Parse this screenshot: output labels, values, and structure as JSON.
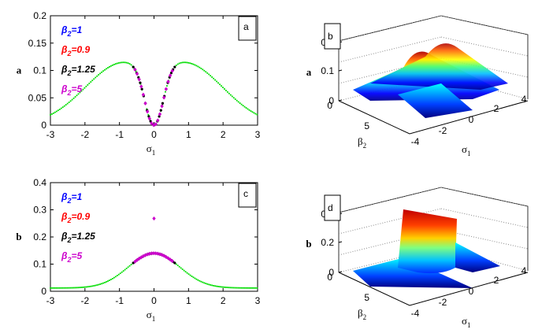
{
  "chart_data": [
    {
      "id": "a",
      "type": "scatter",
      "panel_label": "a",
      "ylabel": "a",
      "xlabel": "σ",
      "xlabel_sub": "1",
      "xlim": [
        -3,
        3
      ],
      "ylim": [
        0,
        0.2
      ],
      "xticks": [
        "-3",
        "-2",
        "-1",
        "0",
        "1",
        "2",
        "3"
      ],
      "yticks": [
        "0",
        "0.05",
        "0.1",
        "0.15",
        "0.2"
      ],
      "legend": [
        {
          "label": "β",
          "sub": "2",
          "suffix": "=1",
          "color": "#0000ff"
        },
        {
          "label": "β",
          "sub": "2",
          "suffix": "=0.9",
          "color": "#ff0000"
        },
        {
          "label": "β",
          "sub": "2",
          "suffix": "=1.25",
          "color": "#000000"
        },
        {
          "label": "β",
          "sub": "2",
          "suffix": "=5",
          "color": "#cc00cc"
        }
      ],
      "series": [
        {
          "color": "#00dd00",
          "curve": "a_outer",
          "range": [
            -3,
            3
          ]
        },
        {
          "color": "#000000",
          "curve": "a_outer",
          "range": [
            -0.6,
            0.6
          ]
        },
        {
          "color": "#cc00cc",
          "curve": "a_outer",
          "range": [
            -0.55,
            0.55
          ]
        }
      ]
    },
    {
      "id": "c",
      "type": "scatter",
      "panel_label": "c",
      "ylabel": "b",
      "xlabel": "σ",
      "xlabel_sub": "1",
      "xlim": [
        -3,
        3
      ],
      "ylim": [
        0,
        0.4
      ],
      "xticks": [
        "-3",
        "-2",
        "-1",
        "0",
        "1",
        "2",
        "3"
      ],
      "yticks": [
        "0",
        "0.1",
        "0.2",
        "0.3",
        "0.4"
      ],
      "legend": [
        {
          "label": "β",
          "sub": "2",
          "suffix": "=1",
          "color": "#0000ff"
        },
        {
          "label": "β",
          "sub": "2",
          "suffix": "=0.9",
          "color": "#ff0000"
        },
        {
          "label": "β",
          "sub": "2",
          "suffix": "=1.25",
          "color": "#000000"
        },
        {
          "label": "β",
          "sub": "2",
          "suffix": "=5",
          "color": "#cc00cc"
        }
      ],
      "series": [
        {
          "color": "#00dd00",
          "curve": "b_bell",
          "range": [
            -3,
            3
          ]
        },
        {
          "color": "#000000",
          "curve": "b_bell",
          "range": [
            -0.6,
            0.6
          ]
        },
        {
          "color": "#cc00cc",
          "curve": "b_bell",
          "range": [
            -0.55,
            0.55
          ]
        }
      ],
      "outlier": {
        "x": 0,
        "y": 0.268,
        "color": "#cc00cc"
      }
    },
    {
      "id": "b",
      "type": "surface3d",
      "panel_label": "b",
      "zlabel": "a",
      "xlabel": "σ",
      "xlabel_sub": "1",
      "ylabel": "β",
      "ylabel_sub": "2",
      "zticks": [
        "0",
        "0.1",
        "0.2"
      ],
      "xticks": [
        "-4",
        "-2",
        "0",
        "2",
        "4"
      ],
      "yticks": [
        "0",
        "5"
      ],
      "colormap": "jet"
    },
    {
      "id": "d",
      "type": "surface3d",
      "panel_label": "d",
      "zlabel": "b",
      "xlabel": "σ",
      "xlabel_sub": "1",
      "ylabel": "β",
      "ylabel_sub": "2",
      "zticks": [
        "0",
        "0.2",
        "0.4"
      ],
      "xticks": [
        "-4",
        "-2",
        "0",
        "2",
        "4"
      ],
      "yticks": [
        "0",
        "5"
      ],
      "colormap": "jet"
    }
  ]
}
